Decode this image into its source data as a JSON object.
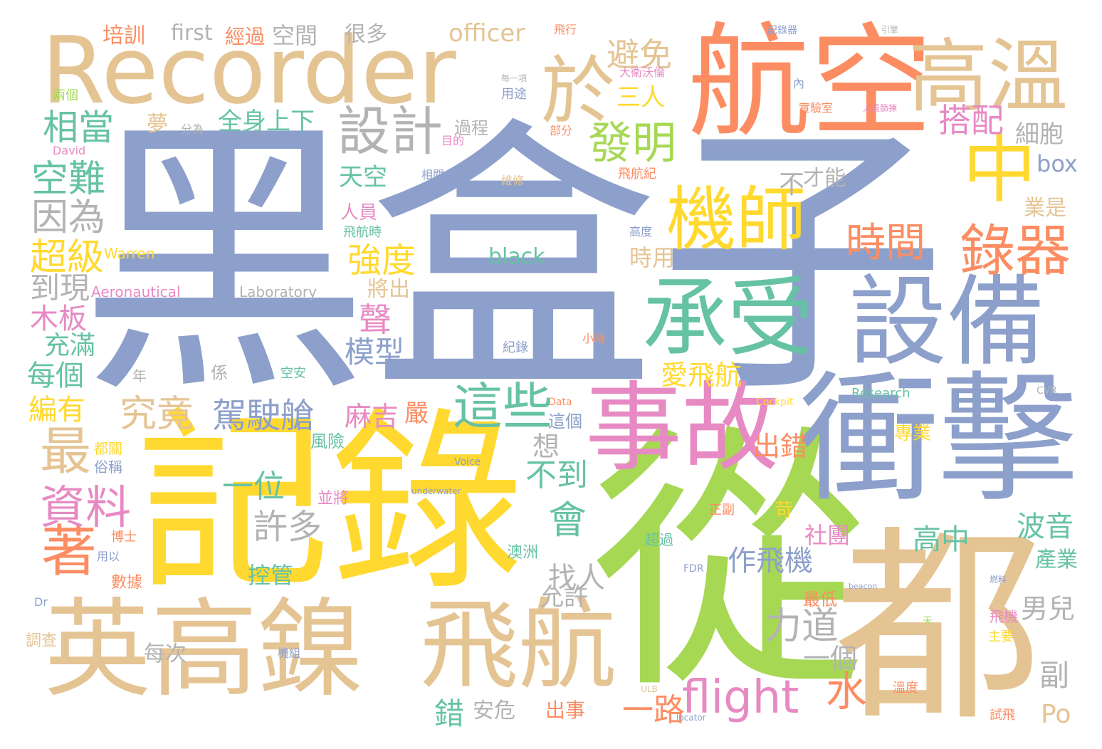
{
  "palette": {
    "blue": "#8DA0CB",
    "yellow": "#FFD92F",
    "tan": "#E5C494",
    "orange": "#FC8D62",
    "green": "#A6D854",
    "teal": "#66C2A5",
    "pink": "#E78AC3",
    "gray": "#B3B3B3"
  },
  "words": [
    {
      "text": "黑盒子",
      "color": "blue"
    },
    {
      "text": "記錄",
      "color": "yellow"
    },
    {
      "text": "從",
      "color": "green"
    },
    {
      "text": "都",
      "color": "tan"
    },
    {
      "text": "Recorder",
      "color": "tan"
    },
    {
      "text": "航空",
      "color": "orange"
    },
    {
      "text": "衝擊",
      "color": "blue"
    },
    {
      "text": "設備",
      "color": "blue"
    },
    {
      "text": "英高鎳",
      "color": "tan"
    },
    {
      "text": "飛航",
      "color": "tan"
    },
    {
      "text": "事故",
      "color": "pink"
    },
    {
      "text": "高溫",
      "color": "tan"
    },
    {
      "text": "承受",
      "color": "teal"
    },
    {
      "text": "機師",
      "color": "yellow"
    },
    {
      "text": "於",
      "color": "tan"
    },
    {
      "text": "中",
      "color": "yellow"
    },
    {
      "text": "設計",
      "color": "gray"
    },
    {
      "text": "錄器",
      "color": "orange"
    },
    {
      "text": "flight",
      "color": "pink"
    },
    {
      "text": "發明",
      "color": "green"
    },
    {
      "text": "這些",
      "color": "teal"
    },
    {
      "text": "著",
      "color": "orange"
    },
    {
      "text": "時間",
      "color": "orange"
    },
    {
      "text": "避免",
      "color": "tan"
    },
    {
      "text": "搭配",
      "color": "pink"
    },
    {
      "text": "相當",
      "color": "teal"
    },
    {
      "text": "空難",
      "color": "teal"
    },
    {
      "text": "因為",
      "color": "gray"
    },
    {
      "text": "超級",
      "color": "yellow"
    },
    {
      "text": "最",
      "color": "tan"
    },
    {
      "text": "資料",
      "color": "pink"
    },
    {
      "text": "駕駛艙",
      "color": "blue"
    },
    {
      "text": "究竟",
      "color": "tan"
    },
    {
      "text": "強度",
      "color": "yellow"
    },
    {
      "text": "會",
      "color": "teal"
    },
    {
      "text": "不到",
      "color": "teal"
    },
    {
      "text": "力道",
      "color": "gray"
    },
    {
      "text": "水",
      "color": "orange"
    },
    {
      "text": "一路",
      "color": "orange"
    },
    {
      "text": "Po",
      "color": "tan"
    },
    {
      "text": "officer",
      "color": "tan"
    },
    {
      "text": "first",
      "color": "gray"
    },
    {
      "text": "經過",
      "color": "orange"
    },
    {
      "text": "空間",
      "color": "gray"
    },
    {
      "text": "很多",
      "color": "gray"
    },
    {
      "text": "培訓",
      "color": "orange"
    },
    {
      "text": "全身上下",
      "color": "teal"
    },
    {
      "text": "black",
      "color": "teal"
    },
    {
      "text": "box",
      "color": "blue"
    },
    {
      "text": "細胞",
      "color": "gray"
    },
    {
      "text": "業是",
      "color": "tan"
    },
    {
      "text": "三人",
      "color": "yellow"
    },
    {
      "text": "天空",
      "color": "teal"
    },
    {
      "text": "人員",
      "color": "pink"
    },
    {
      "text": "夢",
      "color": "tan"
    },
    {
      "text": "過程",
      "color": "gray"
    },
    {
      "text": "才能",
      "color": "gray"
    },
    {
      "text": "不",
      "color": "gray"
    },
    {
      "text": "到現",
      "color": "gray"
    },
    {
      "text": "木板",
      "color": "pink"
    },
    {
      "text": "充滿",
      "color": "teal"
    },
    {
      "text": "每個",
      "color": "teal"
    },
    {
      "text": "編有",
      "color": "yellow"
    },
    {
      "text": "模型",
      "color": "blue"
    },
    {
      "text": "聲",
      "color": "pink"
    },
    {
      "text": "將出",
      "color": "tan"
    },
    {
      "text": "愛飛航",
      "color": "yellow"
    },
    {
      "text": "麻吉",
      "color": "pink"
    },
    {
      "text": "嚴",
      "color": "orange"
    },
    {
      "text": "許多",
      "color": "gray"
    },
    {
      "text": "一位",
      "color": "teal"
    },
    {
      "text": "找人",
      "color": "gray"
    },
    {
      "text": "作飛機",
      "color": "blue"
    },
    {
      "text": "出錯",
      "color": "orange"
    },
    {
      "text": "高中",
      "color": "teal"
    },
    {
      "text": "波音",
      "color": "teal"
    },
    {
      "text": "社團",
      "color": "pink"
    },
    {
      "text": "控管",
      "color": "teal"
    },
    {
      "text": "允許",
      "color": "gray"
    },
    {
      "text": "男兒",
      "color": "gray"
    },
    {
      "text": "一個",
      "color": "gray"
    },
    {
      "text": "副",
      "color": "gray"
    },
    {
      "text": "出事",
      "color": "orange"
    },
    {
      "text": "安危",
      "color": "gray"
    },
    {
      "text": "錯",
      "color": "teal"
    },
    {
      "text": "每次",
      "color": "gray"
    },
    {
      "text": "時用",
      "color": "tan"
    },
    {
      "text": "專業",
      "color": "yellow"
    },
    {
      "text": "產業",
      "color": "teal"
    },
    {
      "text": "想",
      "color": "gray"
    },
    {
      "text": "Aeronautical",
      "color": "pink"
    },
    {
      "text": "Laboratory",
      "color": "gray"
    },
    {
      "text": "Warren",
      "color": "yellow"
    },
    {
      "text": "David",
      "color": "pink"
    },
    {
      "text": "Research",
      "color": "teal"
    },
    {
      "text": "Cockpit",
      "color": "yellow"
    },
    {
      "text": "Data",
      "color": "orange"
    },
    {
      "text": "CVR",
      "color": "gray"
    },
    {
      "text": "Voice",
      "color": "blue"
    },
    {
      "text": "underwater",
      "color": "blue"
    },
    {
      "text": "FDR",
      "color": "blue"
    },
    {
      "text": "beacon",
      "color": "blue"
    },
    {
      "text": "ULB",
      "color": "tan"
    },
    {
      "text": "locator",
      "color": "blue"
    },
    {
      "text": "Dr",
      "color": "blue"
    },
    {
      "text": "飛行",
      "color": "orange"
    },
    {
      "text": "記錄器",
      "color": "blue"
    },
    {
      "text": "大衛沃倫",
      "color": "pink"
    },
    {
      "text": "用途",
      "color": "blue"
    },
    {
      "text": "部分",
      "color": "orange"
    },
    {
      "text": "飛航紀",
      "color": "orange"
    },
    {
      "text": "維修",
      "color": "tan"
    },
    {
      "text": "相關",
      "color": "blue"
    },
    {
      "text": "飛航時",
      "color": "teal"
    },
    {
      "text": "高度",
      "color": "blue"
    },
    {
      "text": "實驗室",
      "color": "orange"
    },
    {
      "text": "每一項",
      "color": "gray"
    },
    {
      "text": "兩個",
      "color": "green"
    },
    {
      "text": "分為",
      "color": "gray"
    },
    {
      "text": "目的",
      "color": "pink"
    },
    {
      "text": "博士",
      "color": "orange"
    },
    {
      "text": "用以",
      "color": "blue"
    },
    {
      "text": "數據",
      "color": "orange"
    },
    {
      "text": "都關",
      "color": "yellow"
    },
    {
      "text": "俗稱",
      "color": "blue"
    },
    {
      "text": "調查",
      "color": "tan"
    },
    {
      "text": "機組",
      "color": "blue"
    },
    {
      "text": "最低",
      "color": "orange"
    },
    {
      "text": "飛機",
      "color": "pink"
    },
    {
      "text": "主要",
      "color": "yellow"
    },
    {
      "text": "超過",
      "color": "teal"
    },
    {
      "text": "正副",
      "color": "orange"
    },
    {
      "text": "苛",
      "color": "yellow"
    },
    {
      "text": "並將",
      "color": "pink"
    },
    {
      "text": "風險",
      "color": "teal"
    },
    {
      "text": "澳洲",
      "color": "teal"
    },
    {
      "text": "這個",
      "color": "blue"
    },
    {
      "text": "係",
      "color": "gray"
    },
    {
      "text": "年",
      "color": "gray"
    },
    {
      "text": "空安",
      "color": "teal"
    },
    {
      "text": "小時",
      "color": "orange"
    },
    {
      "text": "紀錄",
      "color": "blue"
    },
    {
      "text": "溫度",
      "color": "orange"
    },
    {
      "text": "試飛",
      "color": "orange"
    },
    {
      "text": "引擎",
      "color": "gray"
    },
    {
      "text": "內",
      "color": "blue"
    },
    {
      "text": "人員篩揀",
      "color": "pink"
    },
    {
      "text": "燃料",
      "color": "blue"
    },
    {
      "text": "天",
      "color": "green"
    }
  ]
}
